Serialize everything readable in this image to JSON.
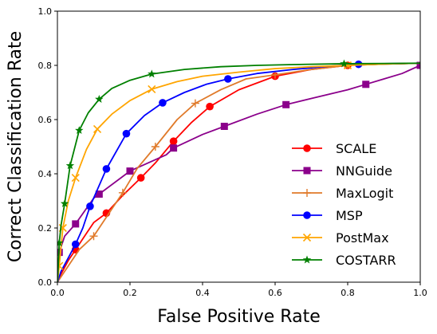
{
  "chart_data": {
    "type": "line",
    "xlabel": "False Positive Rate",
    "ylabel": "Correct Classification Rate",
    "xlim": [
      0.0,
      1.0
    ],
    "ylim": [
      0.0,
      1.0
    ],
    "xticks": [
      "0.0",
      "0.2",
      "0.4",
      "0.6",
      "0.8",
      "1.0"
    ],
    "yticks": [
      "0.0",
      "0.2",
      "0.4",
      "0.6",
      "0.8",
      "1.0"
    ],
    "grid": false,
    "legend_position": "lower-right",
    "series": [
      {
        "name": "SCALE",
        "color": "#ff0000",
        "marker": "circle",
        "points": [
          [
            0.0,
            0.0
          ],
          [
            0.01,
            0.03
          ],
          [
            0.03,
            0.08
          ],
          [
            0.05,
            0.12
          ],
          [
            0.08,
            0.18
          ],
          [
            0.1,
            0.22
          ],
          [
            0.135,
            0.255
          ],
          [
            0.18,
            0.32
          ],
          [
            0.23,
            0.385
          ],
          [
            0.27,
            0.44
          ],
          [
            0.32,
            0.52
          ],
          [
            0.37,
            0.59
          ],
          [
            0.42,
            0.648
          ],
          [
            0.5,
            0.71
          ],
          [
            0.6,
            0.76
          ],
          [
            0.7,
            0.785
          ],
          [
            0.8,
            0.8
          ],
          [
            0.9,
            0.805
          ],
          [
            1.0,
            0.808
          ]
        ],
        "markers_x": [
          0.05,
          0.135,
          0.23,
          0.32,
          0.42,
          0.6,
          0.8
        ]
      },
      {
        "name": "NNGuide",
        "color": "#8b008b",
        "marker": "square",
        "points": [
          [
            0.0,
            0.0
          ],
          [
            0.005,
            0.11
          ],
          [
            0.02,
            0.17
          ],
          [
            0.05,
            0.215
          ],
          [
            0.1,
            0.31
          ],
          [
            0.2,
            0.41
          ],
          [
            0.3,
            0.47
          ],
          [
            0.32,
            0.495
          ],
          [
            0.4,
            0.545
          ],
          [
            0.46,
            0.575
          ],
          [
            0.55,
            0.62
          ],
          [
            0.63,
            0.655
          ],
          [
            0.7,
            0.678
          ],
          [
            0.8,
            0.71
          ],
          [
            0.85,
            0.73
          ],
          [
            0.9,
            0.75
          ],
          [
            0.95,
            0.77
          ],
          [
            1.0,
            0.8
          ]
        ],
        "markers_x": [
          0.005,
          0.05,
          0.115,
          0.2,
          0.32,
          0.46,
          0.63,
          0.85,
          1.0
        ]
      },
      {
        "name": "MaxLogit",
        "color": "#e07a2a",
        "marker": "plus",
        "points": [
          [
            0.0,
            0.0
          ],
          [
            0.01,
            0.02
          ],
          [
            0.03,
            0.06
          ],
          [
            0.06,
            0.12
          ],
          [
            0.1,
            0.17
          ],
          [
            0.14,
            0.25
          ],
          [
            0.18,
            0.33
          ],
          [
            0.22,
            0.42
          ],
          [
            0.27,
            0.5
          ],
          [
            0.33,
            0.6
          ],
          [
            0.38,
            0.66
          ],
          [
            0.45,
            0.71
          ],
          [
            0.52,
            0.75
          ],
          [
            0.6,
            0.765
          ],
          [
            0.7,
            0.785
          ],
          [
            0.8,
            0.8
          ],
          [
            0.9,
            0.805
          ],
          [
            1.0,
            0.808
          ]
        ],
        "markers_x": [
          0.1,
          0.18,
          0.27,
          0.38,
          0.6,
          0.8
        ]
      },
      {
        "name": "MSP",
        "color": "#0000ff",
        "marker": "circle",
        "points": [
          [
            0.0,
            0.0
          ],
          [
            0.01,
            0.04
          ],
          [
            0.03,
            0.09
          ],
          [
            0.05,
            0.14
          ],
          [
            0.07,
            0.2
          ],
          [
            0.09,
            0.28
          ],
          [
            0.135,
            0.418
          ],
          [
            0.19,
            0.548
          ],
          [
            0.24,
            0.615
          ],
          [
            0.29,
            0.662
          ],
          [
            0.35,
            0.7
          ],
          [
            0.41,
            0.73
          ],
          [
            0.47,
            0.75
          ],
          [
            0.55,
            0.77
          ],
          [
            0.65,
            0.785
          ],
          [
            0.75,
            0.797
          ],
          [
            0.83,
            0.804
          ],
          [
            0.9,
            0.806
          ],
          [
            1.0,
            0.808
          ]
        ],
        "markers_x": [
          0.05,
          0.09,
          0.135,
          0.19,
          0.29,
          0.47,
          0.83
        ]
      },
      {
        "name": "PostMax",
        "color": "#ffa500",
        "marker": "x",
        "points": [
          [
            0.0,
            0.0
          ],
          [
            0.005,
            0.06
          ],
          [
            0.015,
            0.2
          ],
          [
            0.03,
            0.3
          ],
          [
            0.05,
            0.385
          ],
          [
            0.08,
            0.49
          ],
          [
            0.11,
            0.565
          ],
          [
            0.15,
            0.62
          ],
          [
            0.2,
            0.67
          ],
          [
            0.26,
            0.712
          ],
          [
            0.33,
            0.74
          ],
          [
            0.4,
            0.76
          ],
          [
            0.5,
            0.775
          ],
          [
            0.6,
            0.788
          ],
          [
            0.7,
            0.795
          ],
          [
            0.8,
            0.8
          ],
          [
            0.9,
            0.805
          ],
          [
            1.0,
            0.808
          ]
        ],
        "markers_x": [
          0.005,
          0.015,
          0.05,
          0.11,
          0.26,
          0.8
        ]
      },
      {
        "name": "COSTARR",
        "color": "#008000",
        "marker": "star",
        "points": [
          [
            0.0,
            0.0
          ],
          [
            0.002,
            0.05
          ],
          [
            0.005,
            0.145
          ],
          [
            0.01,
            0.21
          ],
          [
            0.02,
            0.29
          ],
          [
            0.035,
            0.43
          ],
          [
            0.06,
            0.56
          ],
          [
            0.085,
            0.625
          ],
          [
            0.115,
            0.675
          ],
          [
            0.15,
            0.715
          ],
          [
            0.2,
            0.745
          ],
          [
            0.26,
            0.768
          ],
          [
            0.35,
            0.785
          ],
          [
            0.45,
            0.795
          ],
          [
            0.55,
            0.8
          ],
          [
            0.65,
            0.803
          ],
          [
            0.79,
            0.806
          ],
          [
            0.9,
            0.807
          ],
          [
            1.0,
            0.808
          ]
        ],
        "markers_x": [
          0.005,
          0.02,
          0.035,
          0.06,
          0.115,
          0.26,
          0.79
        ]
      }
    ]
  }
}
